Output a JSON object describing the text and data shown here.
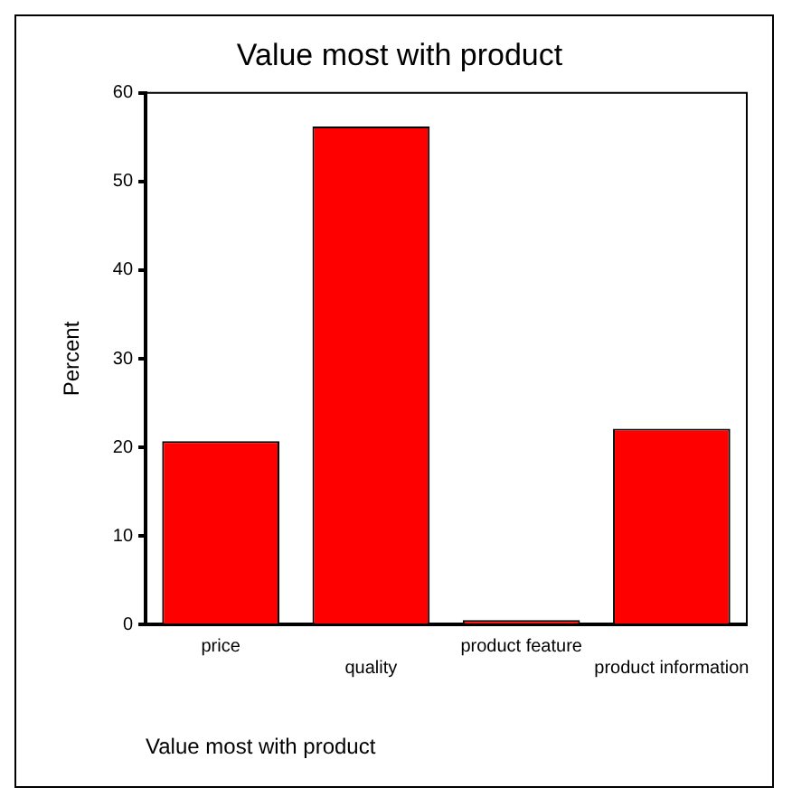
{
  "chart_data": {
    "type": "bar",
    "title": "Value most with product",
    "xlabel": "Value most with product",
    "ylabel": "Percent",
    "categories": [
      "price",
      "quality",
      "product feature",
      "product information"
    ],
    "values": [
      20.7,
      56.2,
      0.5,
      22.1
    ],
    "color": "#ff0000",
    "ylim": [
      0,
      60
    ],
    "yticks": [
      0,
      10,
      20,
      30,
      40,
      50,
      60
    ],
    "grid": false,
    "legend": false
  }
}
